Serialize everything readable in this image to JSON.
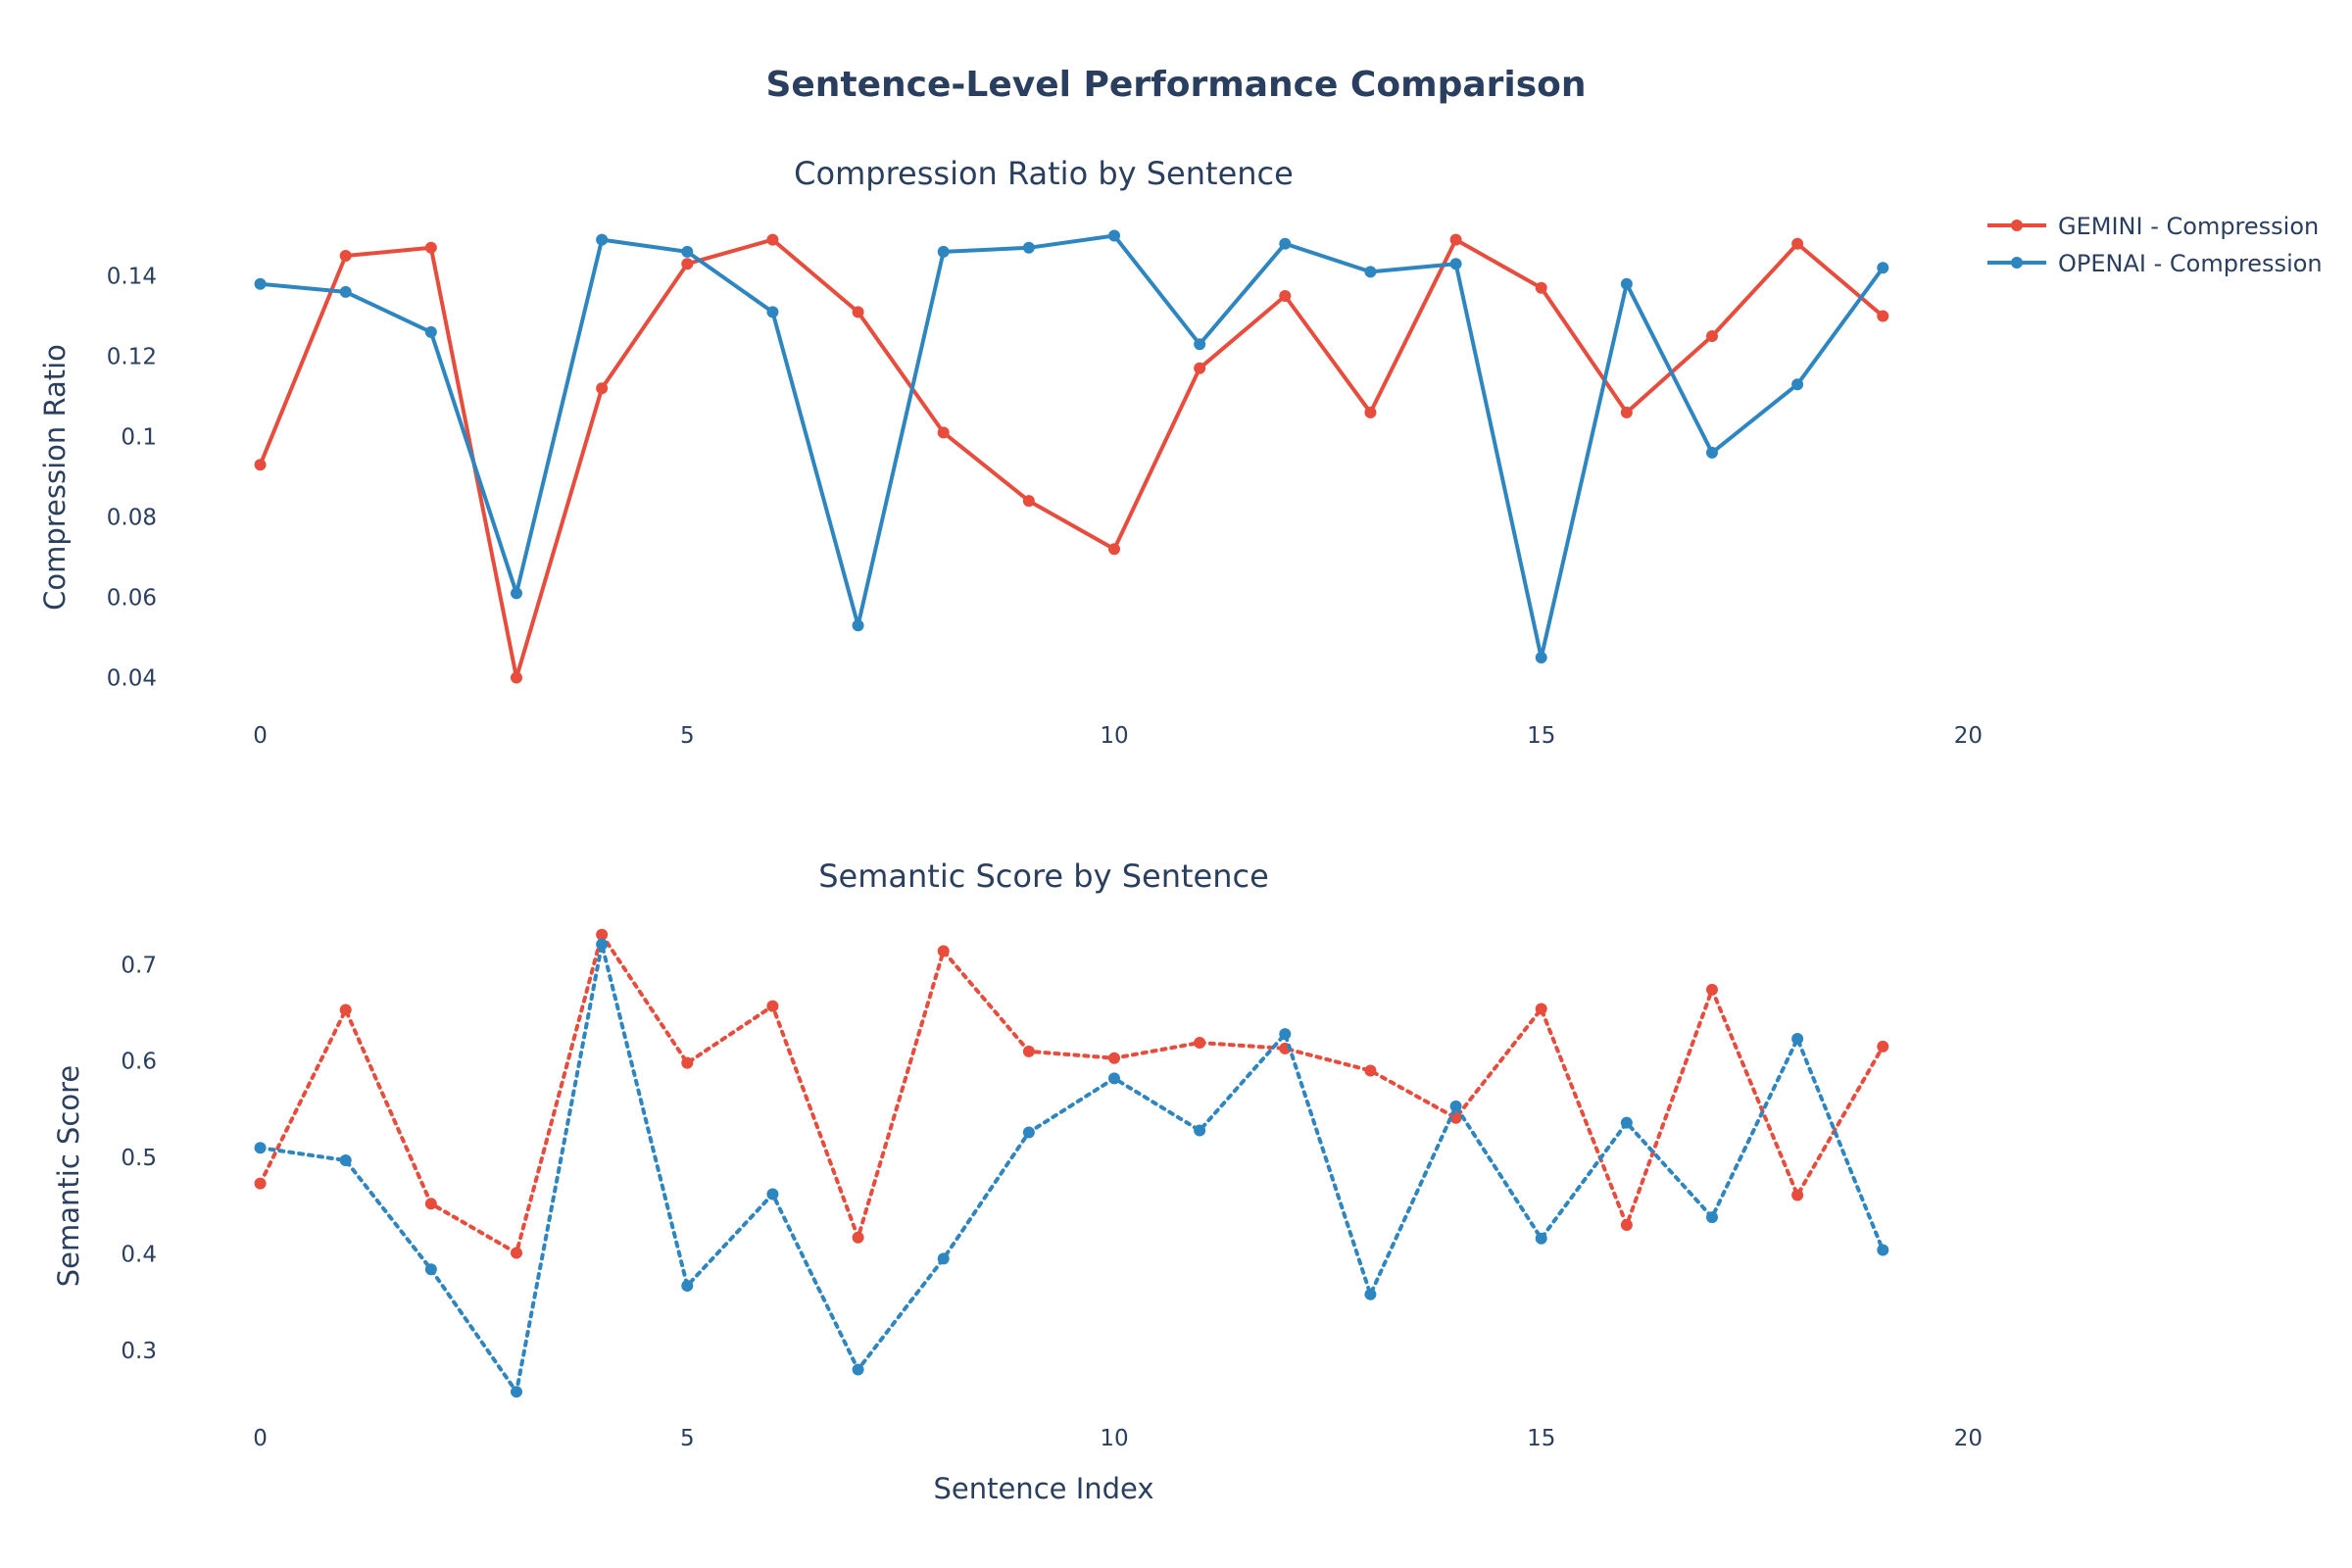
{
  "title": "Sentence-Level Performance Comparison",
  "colors": {
    "gemini": "#e74c3c",
    "openai": "#2e86c1",
    "text": "#2a3f5f"
  },
  "legend": {
    "placement": "top-right",
    "items": [
      "GEMINI - Compression",
      "OPENAI - Compression"
    ]
  },
  "chart_data": [
    {
      "type": "line",
      "title": "Compression Ratio by Sentence",
      "xlabel": "",
      "ylabel": "Compression Ratio",
      "xlim": [
        -0.5,
        20.5
      ],
      "ylim": [
        0.035,
        0.155
      ],
      "xticks": [
        0,
        5,
        10,
        15,
        20
      ],
      "yticks": [
        0.04,
        0.06,
        0.08,
        0.1,
        0.12,
        0.14
      ],
      "ytick_labels": [
        "0.04",
        "0.06",
        "0.08",
        "0.1",
        "0.12",
        "0.14"
      ],
      "grid": false,
      "x": [
        0,
        1,
        2,
        3,
        4,
        5,
        6,
        7,
        8,
        9,
        10,
        11,
        12,
        13,
        14,
        15,
        16,
        17,
        18,
        19
      ],
      "series": [
        {
          "name": "GEMINI - Compression",
          "color": "gemini",
          "dash": "solid",
          "values": [
            0.093,
            0.145,
            0.147,
            0.04,
            0.112,
            0.143,
            0.149,
            0.131,
            0.101,
            0.084,
            0.072,
            0.117,
            0.135,
            0.106,
            0.149,
            0.137,
            0.106,
            0.125,
            0.148,
            0.13
          ]
        },
        {
          "name": "OPENAI - Compression",
          "color": "openai",
          "dash": "solid",
          "values": [
            0.138,
            0.136,
            0.126,
            0.061,
            0.149,
            0.146,
            0.131,
            0.053,
            0.146,
            0.147,
            0.15,
            0.123,
            0.148,
            0.141,
            0.143,
            0.045,
            0.138,
            0.096,
            0.113,
            0.142
          ]
        }
      ]
    },
    {
      "type": "line",
      "title": "Semantic Score by Sentence",
      "xlabel": "Sentence Index",
      "ylabel": "Semantic Score",
      "xlim": [
        -0.5,
        20.5
      ],
      "ylim": [
        0.245,
        0.745
      ],
      "xticks": [
        0,
        5,
        10,
        15,
        20
      ],
      "yticks": [
        0.3,
        0.4,
        0.5,
        0.6,
        0.7
      ],
      "ytick_labels": [
        "0.3",
        "0.4",
        "0.5",
        "0.6",
        "0.7"
      ],
      "grid": false,
      "x": [
        0,
        1,
        2,
        3,
        4,
        5,
        6,
        7,
        8,
        9,
        10,
        11,
        12,
        13,
        14,
        15,
        16,
        17,
        18,
        19
      ],
      "series": [
        {
          "color": "gemini",
          "dash": "dot",
          "values": [
            0.473,
            0.653,
            0.452,
            0.401,
            0.731,
            0.598,
            0.657,
            0.417,
            0.714,
            0.61,
            0.603,
            0.619,
            0.613,
            0.59,
            0.541,
            0.654,
            0.43,
            0.674,
            0.461,
            0.615
          ]
        },
        {
          "color": "openai",
          "dash": "dot",
          "values": [
            0.51,
            0.497,
            0.384,
            0.257,
            0.721,
            0.367,
            0.462,
            0.28,
            0.395,
            0.526,
            0.582,
            0.528,
            0.628,
            0.358,
            0.553,
            0.416,
            0.536,
            0.438,
            0.623,
            0.404
          ]
        }
      ]
    }
  ]
}
